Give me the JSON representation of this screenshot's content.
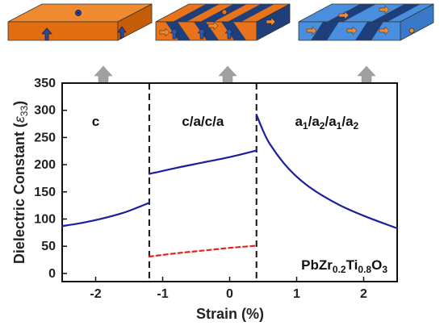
{
  "chart_data": {
    "type": "line",
    "xlabel": "Strain (%)",
    "ylabel_main": "Dielectric Constant (",
    "ylabel_symbol": "ε",
    "ylabel_sub": "33",
    "ylabel_close": ")",
    "xlim": [
      -2.5,
      2.5
    ],
    "ylim": [
      -15,
      350
    ],
    "xticks": [
      -2,
      -1,
      0,
      1,
      2
    ],
    "xtick_labels": [
      "-2",
      "-1",
      "0",
      "1",
      "2"
    ],
    "yticks": [
      0,
      50,
      100,
      150,
      200,
      250,
      300,
      350
    ],
    "ytick_labels": [
      "0",
      "50",
      "100",
      "150",
      "200",
      "250",
      "300",
      "350"
    ],
    "phase_boundaries": [
      -1.2,
      0.4
    ],
    "regions": [
      {
        "label": "c",
        "x": -2.0
      },
      {
        "label": "c/a/c/a",
        "x": -0.4
      },
      {
        "label_parts": [
          "a",
          "1",
          "/a",
          "2",
          "/a",
          "1",
          "/a",
          "2"
        ],
        "x": 1.45
      }
    ],
    "formula_parts": [
      "PbZr",
      "0.2",
      "Ti",
      "0.8",
      "O",
      "3"
    ],
    "series": [
      {
        "style": "solid",
        "color": "#1a1f9c",
        "x": [
          -2.5,
          -2.2,
          -1.9,
          -1.6,
          -1.4,
          -1.2
        ],
        "y": [
          87,
          93,
          101,
          111,
          120,
          130
        ]
      },
      {
        "style": "solid",
        "color": "#1a1f9c",
        "x": [
          -1.2,
          -0.8,
          -0.4,
          0.0,
          0.4
        ],
        "y": [
          183,
          194,
          204,
          214,
          226
        ]
      },
      {
        "style": "dashed",
        "color": "#e8201a",
        "x": [
          -1.2,
          -0.8,
          -0.4,
          0.0,
          0.4
        ],
        "y": [
          31,
          37,
          42,
          47,
          51
        ]
      },
      {
        "style": "solid",
        "color": "#1a1f9c",
        "x": [
          0.4,
          0.5,
          0.6,
          0.8,
          1.0,
          1.2,
          1.4,
          1.7,
          2.0,
          2.3,
          2.5
        ],
        "y": [
          292,
          262,
          238,
          204,
          178,
          158,
          142,
          122,
          106,
          92,
          83
        ]
      }
    ],
    "colors": {
      "orange": "#e8731a",
      "dark_blue": "#1e3f7a",
      "light_blue": "#4a8fdd",
      "arrow_gray": "#a0a0a0"
    }
  }
}
